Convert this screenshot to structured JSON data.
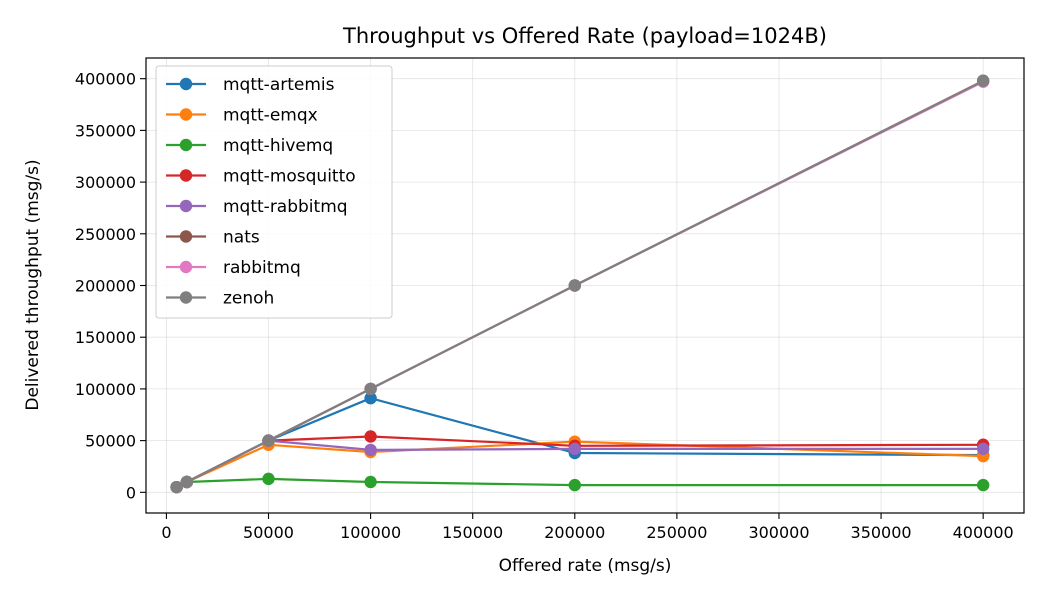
{
  "chart_data": {
    "type": "line",
    "title": "Throughput vs Offered Rate (payload=1024B)",
    "xlabel": "Offered rate (msg/s)",
    "ylabel": "Delivered throughput (msg/s)",
    "xlim": [
      -10000,
      420000
    ],
    "ylim": [
      -20000,
      420000
    ],
    "xticks": [
      0,
      50000,
      100000,
      150000,
      200000,
      250000,
      300000,
      350000,
      400000
    ],
    "yticks": [
      0,
      50000,
      100000,
      150000,
      200000,
      250000,
      300000,
      350000,
      400000
    ],
    "grid": true,
    "legend_position": "upper-left",
    "x": [
      5000,
      10000,
      50000,
      100000,
      200000,
      400000
    ],
    "series": [
      {
        "name": "mqtt-artemis",
        "color": "#1f77b4",
        "values": [
          5000,
          10000,
          50000,
          91000,
          38000,
          36000
        ]
      },
      {
        "name": "mqtt-emqx",
        "color": "#ff7f0e",
        "values": [
          5000,
          10000,
          46000,
          39000,
          49000,
          35000
        ]
      },
      {
        "name": "mqtt-hivemq",
        "color": "#2ca02c",
        "values": [
          5000,
          10000,
          13000,
          10000,
          7000,
          7000
        ]
      },
      {
        "name": "mqtt-mosquitto",
        "color": "#d62728",
        "values": [
          5000,
          10000,
          50000,
          54000,
          45000,
          46000
        ]
      },
      {
        "name": "mqtt-rabbitmq",
        "color": "#9467bd",
        "values": [
          5000,
          10000,
          50000,
          41000,
          42000,
          42000
        ]
      },
      {
        "name": "nats",
        "color": "#8c564b",
        "values": [
          5000,
          10000,
          50000,
          100000,
          200000,
          398000
        ]
      },
      {
        "name": "rabbitmq",
        "color": "#e377c2",
        "values": [
          5000,
          10000,
          50000,
          100000,
          200000,
          397000
        ]
      },
      {
        "name": "zenoh",
        "color": "#7f7f7f",
        "values": [
          5000,
          10000,
          50000,
          100000,
          200000,
          398000
        ]
      }
    ]
  }
}
